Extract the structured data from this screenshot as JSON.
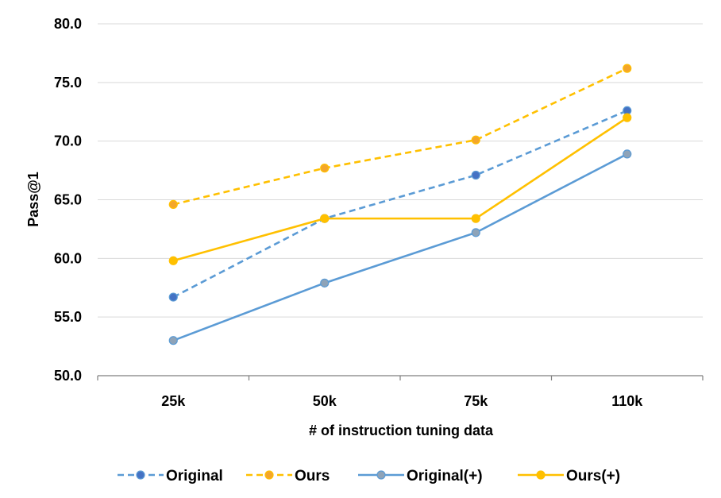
{
  "chart_data": {
    "type": "line",
    "title": "",
    "xlabel": "# of instruction tuning data",
    "ylabel": "Pass@1",
    "categories": [
      "25k",
      "50k",
      "75k",
      "110k"
    ],
    "ylim": [
      50,
      80
    ],
    "yticks": [
      "50.0",
      "55.0",
      "60.0",
      "65.0",
      "70.0",
      "75.0",
      "80.0"
    ],
    "grid": true,
    "legend_position": "bottom",
    "series": [
      {
        "name": "Original",
        "values": [
          56.7,
          63.4,
          67.1,
          72.6
        ],
        "color": "#5b9bd5",
        "marker_fill": "#4472c4",
        "dashed": true
      },
      {
        "name": "Ours",
        "values": [
          64.6,
          67.7,
          70.1,
          76.2
        ],
        "color": "#ffc000",
        "marker_fill": "#f4a62a",
        "dashed": true
      },
      {
        "name": "Original(+)",
        "values": [
          53.0,
          57.9,
          62.2,
          68.9
        ],
        "color": "#5b9bd5",
        "marker_fill": "#8ea3b8",
        "dashed": false
      },
      {
        "name": "Ours(+)",
        "values": [
          59.8,
          63.4,
          63.4,
          72.0
        ],
        "color": "#ffc000",
        "marker_fill": "#ffc000",
        "dashed": false
      }
    ]
  }
}
